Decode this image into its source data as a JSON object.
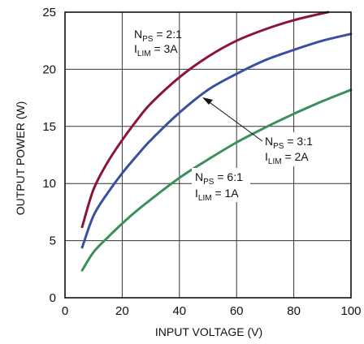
{
  "chart_data": {
    "type": "line",
    "xlabel": "INPUT VOLTAGE (V)",
    "ylabel": "OUTPUT POWER (W)",
    "xlim": [
      0,
      100
    ],
    "ylim": [
      0,
      25
    ],
    "x_ticks": [
      "0",
      "20",
      "40",
      "60",
      "80",
      "100"
    ],
    "y_ticks": [
      "0",
      "5",
      "10",
      "15",
      "20",
      "25"
    ],
    "grid": true,
    "series": [
      {
        "color": "#8b1538",
        "x": [
          6,
          10,
          15,
          20,
          25,
          30,
          40,
          50,
          60,
          70,
          80,
          90,
          92
        ],
        "y": [
          6.2,
          9.5,
          11.9,
          13.8,
          15.5,
          17.0,
          19.3,
          21.1,
          22.5,
          23.5,
          24.3,
          24.9,
          25.0
        ]
      },
      {
        "color": "#3a4fa0",
        "x": [
          6,
          10,
          15,
          20,
          25,
          30,
          40,
          50,
          60,
          70,
          80,
          90,
          100
        ],
        "y": [
          4.4,
          7.2,
          9.2,
          10.9,
          12.4,
          13.8,
          16.2,
          18.2,
          19.6,
          20.8,
          21.7,
          22.5,
          23.1
        ]
      },
      {
        "color": "#3a8f5a",
        "x": [
          6,
          10,
          15,
          20,
          25,
          30,
          40,
          50,
          60,
          70,
          80,
          90,
          100
        ],
        "y": [
          2.4,
          4.0,
          5.3,
          6.5,
          7.6,
          8.6,
          10.5,
          12.1,
          13.6,
          14.9,
          16.1,
          17.2,
          18.2
        ]
      }
    ],
    "annotations": [
      {
        "line1": {
          "main": "N",
          "sub": "PS",
          "rest": " = 2:1"
        },
        "line2": {
          "main": "I",
          "sub": "LIM",
          "rest": " = 3A"
        }
      },
      {
        "line1": {
          "main": "N",
          "sub": "PS",
          "rest": " = 3:1"
        },
        "line2": {
          "main": "I",
          "sub": "LIM",
          "rest": " = 2A"
        }
      },
      {
        "line1": {
          "main": "N",
          "sub": "PS",
          "rest": " = 6:1"
        },
        "line2": {
          "main": "I",
          "sub": "LIM",
          "rest": " = 1A"
        }
      }
    ]
  }
}
